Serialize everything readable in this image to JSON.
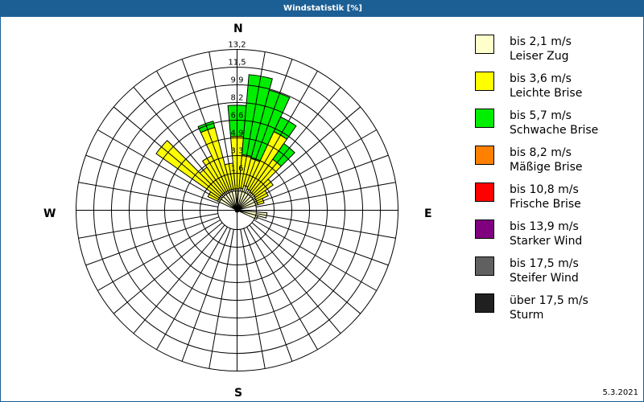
{
  "window": {
    "title": "Windstatistik [%]"
  },
  "compass": {
    "n": "N",
    "e": "E",
    "s": "S",
    "w": "W"
  },
  "date": "5.3.2021",
  "legend": [
    {
      "line1": "bis 2,1 m/s",
      "line2": "Leiser Zug",
      "color": "#ffffcc"
    },
    {
      "line1": "bis 3,6 m/s",
      "line2": "Leichte Brise",
      "color": "#ffff00"
    },
    {
      "line1": "bis 5,7 m/s",
      "line2": "Schwache Brise",
      "color": "#00ee00"
    },
    {
      "line1": "bis 8,2 m/s",
      "line2": "Mäßige Brise",
      "color": "#ff8000"
    },
    {
      "line1": "bis 10,8 m/s",
      "line2": "Frische Brise",
      "color": "#ff0000"
    },
    {
      "line1": "bis 13,9 m/s",
      "line2": "Starker Wind",
      "color": "#800080"
    },
    {
      "line1": "bis 17,5 m/s",
      "line2": "Steifer Wind",
      "color": "#606060"
    },
    {
      "line1": "über 17,5 m/s",
      "line2": "Sturm",
      "color": "#202020"
    }
  ],
  "chart_data": {
    "type": "polar-bar",
    "title": "Windstatistik [%]",
    "ring_labels": [
      "1,6",
      "3,3",
      "4,9",
      "6,6",
      "8,2",
      "9,9",
      "11,5",
      "13,2"
    ],
    "ring_values": [
      1.65,
      3.3,
      4.95,
      6.6,
      8.25,
      9.9,
      11.55,
      13.2
    ],
    "rmax": 13.2,
    "directions_deg": [
      0,
      10,
      20,
      30,
      40,
      50,
      60,
      70,
      100,
      110,
      300,
      310,
      320,
      330,
      340,
      350
    ],
    "series": [
      {
        "name": "bis 2,1 m/s Leiser Zug",
        "color": "#ffffcc",
        "values": {
          "0": 0.2,
          "10": 0.3,
          "20": 0.6,
          "30": 0.4,
          "40": 0.3,
          "50": 0.3,
          "60": 0.2,
          "70": 0.2,
          "100": 1.0,
          "110": 0.2,
          "300": 0.2,
          "310": 0.2,
          "320": 0.2,
          "330": 0.2,
          "340": 0.2,
          "350": 0.2
        }
      },
      {
        "name": "bis 3,6 m/s Leichte Brise",
        "color": "#ffff00",
        "values": {
          "0": 4.9,
          "10": 3.1,
          "20": 2.6,
          "30": 5.9,
          "40": 3.7,
          "50": 2.0,
          "60": 1.2,
          "70": 0.6,
          "100": 0,
          "110": 0,
          "300": 1.0,
          "310": 7.2,
          "320": 2.9,
          "330": 3.6,
          "340": 6.0,
          "350": 2.4
        }
      },
      {
        "name": "bis 5,7 m/s Schwache Brise",
        "color": "#00ee00",
        "values": {
          "0": 2.9,
          "10": 7.5,
          "20": 6.6,
          "30": 1.5,
          "40": 1.8,
          "50": 0,
          "60": 0,
          "70": 0,
          "100": 0,
          "110": 0,
          "300": 0,
          "310": 0,
          "320": 0,
          "330": 0,
          "340": 0.6,
          "350": 0
        }
      }
    ],
    "legend_position": "right",
    "grid": true
  }
}
